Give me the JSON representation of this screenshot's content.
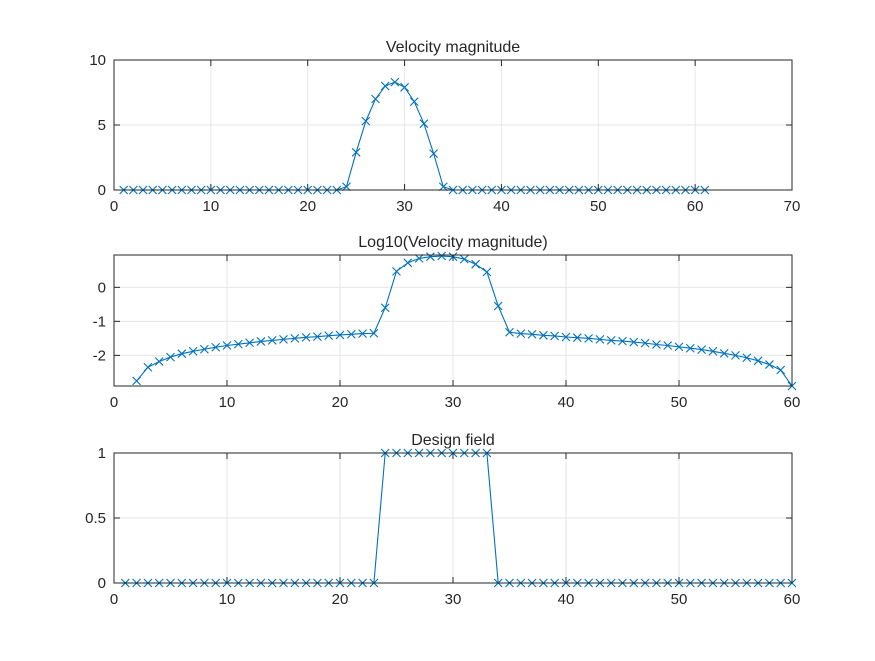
{
  "figure": {
    "background": "#ffffff",
    "axes_color": "#262626",
    "grid_color": "#e6e6e6",
    "line_color": "#0072bd"
  },
  "chart_data": [
    {
      "type": "line",
      "title": "Velocity magnitude",
      "xlabel": "",
      "ylabel": "",
      "xlim": [
        0,
        70
      ],
      "ylim": [
        0,
        10
      ],
      "xticks": [
        0,
        10,
        20,
        30,
        40,
        50,
        60,
        70
      ],
      "yticks": [
        0,
        5,
        10
      ],
      "grid": true,
      "marker": "x",
      "series": [
        {
          "x": [
            1,
            2,
            3,
            4,
            5,
            6,
            7,
            8,
            9,
            10,
            11,
            12,
            13,
            14,
            15,
            16,
            17,
            18,
            19,
            20,
            21,
            22,
            23,
            24,
            25,
            26,
            27,
            28,
            29,
            30,
            31,
            32,
            33,
            34,
            35,
            36,
            37,
            38,
            39,
            40,
            41,
            42,
            43,
            44,
            45,
            46,
            47,
            48,
            49,
            50,
            51,
            52,
            53,
            54,
            55,
            56,
            57,
            58,
            59,
            60,
            61
          ],
          "y": [
            0,
            0,
            0,
            0,
            0,
            0,
            0,
            0,
            0,
            0,
            0,
            0,
            0,
            0,
            0,
            0,
            0,
            0,
            0,
            0,
            0,
            0,
            0,
            0.25,
            2.9,
            5.3,
            7.0,
            8.0,
            8.3,
            7.9,
            6.8,
            5.1,
            2.8,
            0.25,
            0,
            0,
            0,
            0,
            0,
            0,
            0,
            0,
            0,
            0,
            0,
            0,
            0,
            0,
            0,
            0,
            0,
            0,
            0,
            0,
            0,
            0,
            0,
            0,
            0,
            0,
            0
          ]
        }
      ]
    },
    {
      "type": "line",
      "title": "Log10(Velocity magnitude)",
      "xlabel": "",
      "ylabel": "",
      "xlim": [
        0,
        60
      ],
      "ylim": [
        -2.9,
        0.95
      ],
      "xticks": [
        0,
        10,
        20,
        30,
        40,
        50,
        60
      ],
      "yticks": [
        -2,
        -1,
        0
      ],
      "grid": true,
      "marker": "x",
      "series": [
        {
          "x": [
            2,
            3,
            4,
            5,
            6,
            7,
            8,
            9,
            10,
            11,
            12,
            13,
            14,
            15,
            16,
            17,
            18,
            19,
            20,
            21,
            22,
            23,
            24,
            25,
            26,
            27,
            28,
            29,
            30,
            31,
            32,
            33,
            34,
            35,
            36,
            37,
            38,
            39,
            40,
            41,
            42,
            43,
            44,
            45,
            46,
            47,
            48,
            49,
            50,
            51,
            52,
            53,
            54,
            55,
            56,
            57,
            58,
            59,
            60
          ],
          "y": [
            -2.75,
            -2.35,
            -2.18,
            -2.05,
            -1.95,
            -1.88,
            -1.82,
            -1.76,
            -1.71,
            -1.67,
            -1.63,
            -1.59,
            -1.56,
            -1.53,
            -1.5,
            -1.47,
            -1.45,
            -1.42,
            -1.4,
            -1.38,
            -1.36,
            -1.35,
            -0.6,
            0.47,
            0.72,
            0.85,
            0.9,
            0.92,
            0.9,
            0.83,
            0.68,
            0.45,
            -0.55,
            -1.32,
            -1.36,
            -1.38,
            -1.41,
            -1.43,
            -1.46,
            -1.48,
            -1.5,
            -1.53,
            -1.56,
            -1.58,
            -1.61,
            -1.64,
            -1.68,
            -1.71,
            -1.75,
            -1.79,
            -1.83,
            -1.88,
            -1.94,
            -2.0,
            -2.07,
            -2.16,
            -2.27,
            -2.43,
            -2.9
          ]
        }
      ]
    },
    {
      "type": "line",
      "title": "Design field",
      "xlabel": "",
      "ylabel": "",
      "xlim": [
        0,
        60
      ],
      "ylim": [
        0,
        1
      ],
      "xticks": [
        0,
        10,
        20,
        30,
        40,
        50,
        60
      ],
      "yticks": [
        0,
        0.5,
        1
      ],
      "grid": true,
      "marker": "x",
      "series": [
        {
          "x": [
            1,
            2,
            3,
            4,
            5,
            6,
            7,
            8,
            9,
            10,
            11,
            12,
            13,
            14,
            15,
            16,
            17,
            18,
            19,
            20,
            21,
            22,
            23,
            24,
            25,
            26,
            27,
            28,
            29,
            30,
            31,
            32,
            33,
            34,
            35,
            36,
            37,
            38,
            39,
            40,
            41,
            42,
            43,
            44,
            45,
            46,
            47,
            48,
            49,
            50,
            51,
            52,
            53,
            54,
            55,
            56,
            57,
            58,
            59,
            60
          ],
          "y": [
            0,
            0,
            0,
            0,
            0,
            0,
            0,
            0,
            0,
            0,
            0,
            0,
            0,
            0,
            0,
            0,
            0,
            0,
            0,
            0,
            0,
            0,
            0,
            1,
            1,
            1,
            1,
            1,
            1,
            1,
            1,
            1,
            1,
            0,
            0,
            0,
            0,
            0,
            0,
            0,
            0,
            0,
            0,
            0,
            0,
            0,
            0,
            0,
            0,
            0,
            0,
            0,
            0,
            0,
            0,
            0,
            0,
            0,
            0,
            0
          ]
        }
      ]
    }
  ]
}
